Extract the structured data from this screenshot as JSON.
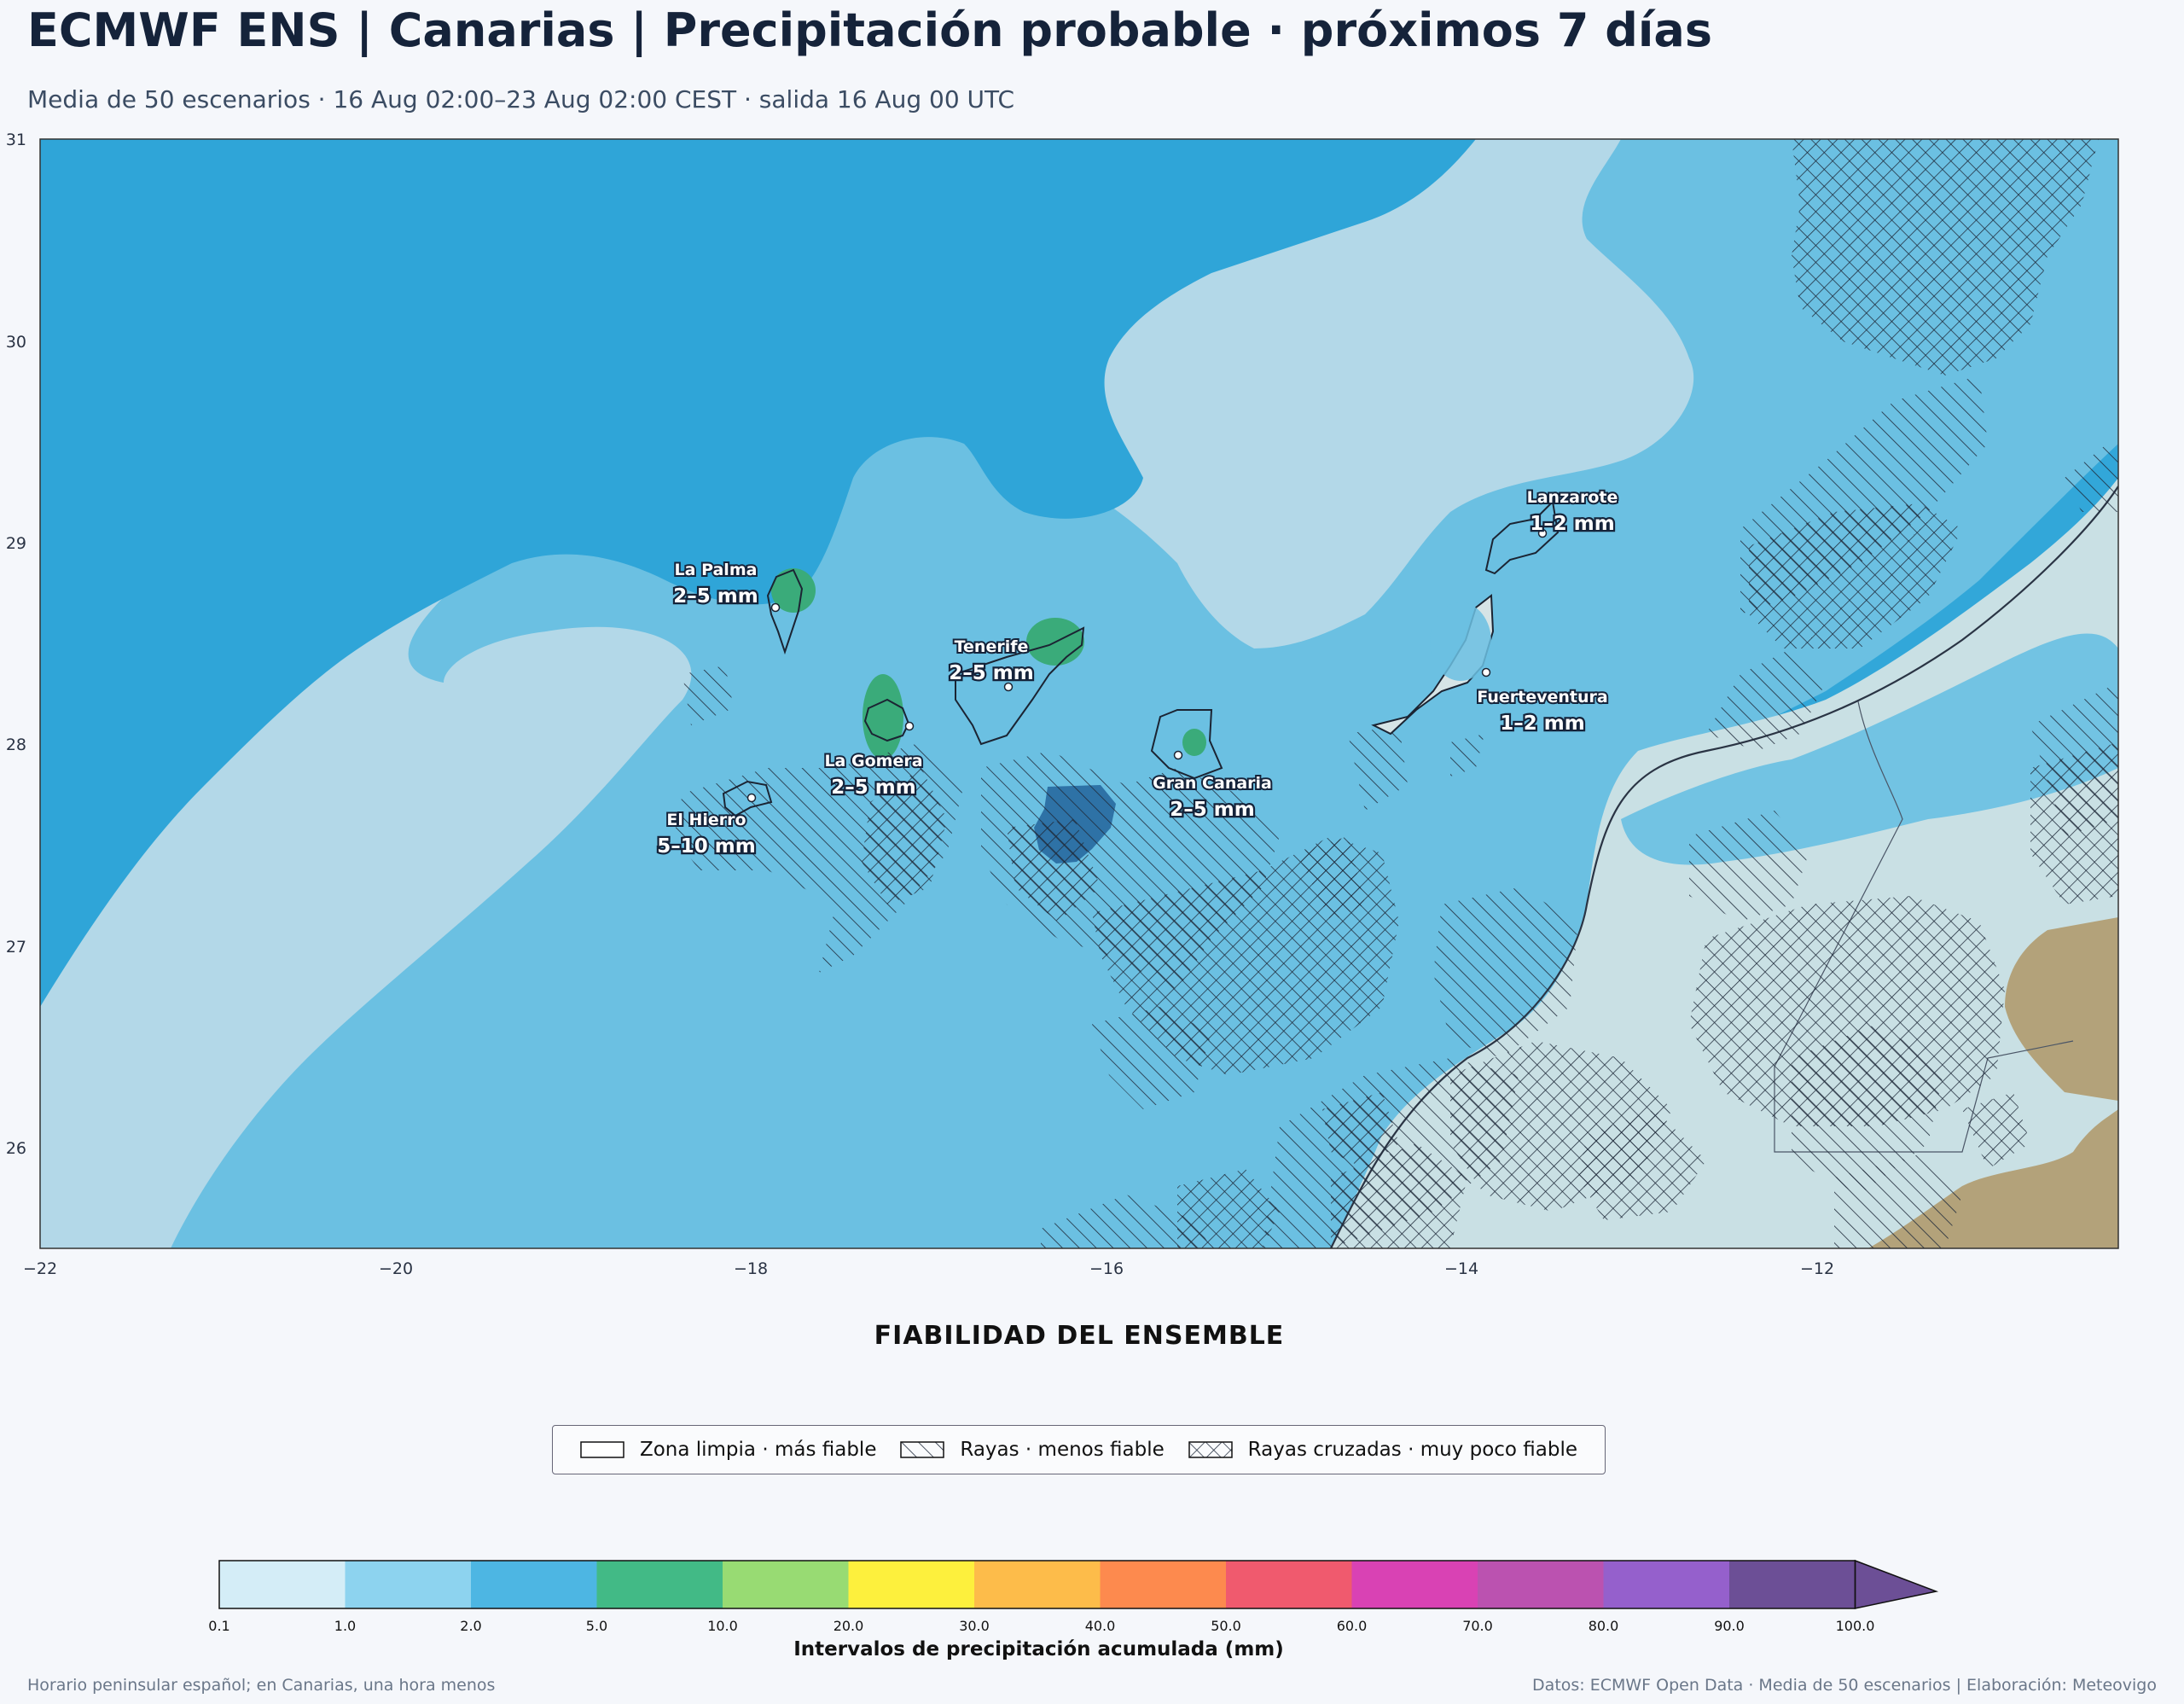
{
  "header": {
    "title": "ECMWF ENS | Canarias | Precipitación probable · próximos 7 días",
    "subtitle": "Media de 50 escenarios · 16 Aug 02:00–23 Aug 02:00 CEST · salida 16 Aug 00 UTC"
  },
  "map": {
    "lon_range": [
      -22,
      -10.3
    ],
    "lat_range": [
      25.5,
      31
    ],
    "x_ticks": [
      "−22",
      "−20",
      "−18",
      "−16",
      "−14",
      "−12"
    ],
    "y_ticks": [
      "26",
      "27",
      "28",
      "29",
      "30",
      "31"
    ],
    "colors": {
      "ocean_deep": "#2fa5d8",
      "ocean_mid": "#6bc0e2",
      "ocean_light": "#b3d8e8",
      "rain_green": "#3aab7a",
      "rain_dark": "#2e72a6",
      "land": "#c9e0e4",
      "desert": "#b3a27a"
    },
    "islands": [
      {
        "name": "La Palma",
        "value": "2–5 mm"
      },
      {
        "name": "Tenerife",
        "value": "2–5 mm"
      },
      {
        "name": "La Gomera",
        "value": "2–5 mm"
      },
      {
        "name": "El Hierro",
        "value": "5–10 mm"
      },
      {
        "name": "Gran Canaria",
        "value": "2–5 mm"
      },
      {
        "name": "Lanzarote",
        "value": "1–2 mm"
      },
      {
        "name": "Fuerteventura",
        "value": "1–2 mm"
      }
    ]
  },
  "reliability": {
    "title": "FIABILIDAD DEL ENSEMBLE",
    "items": [
      {
        "label": "Zona limpia · más fiable",
        "pattern": "none"
      },
      {
        "label": "Rayas · menos fiable",
        "pattern": "hatch"
      },
      {
        "label": "Rayas cruzadas · muy poco fiable",
        "pattern": "crosshatch"
      }
    ]
  },
  "colorbar": {
    "label": "Intervalos de precipitación acumulada (mm)",
    "ticks": [
      "0.1",
      "1.0",
      "2.0",
      "5.0",
      "10.0",
      "20.0",
      "30.0",
      "40.0",
      "50.0",
      "60.0",
      "70.0",
      "80.0",
      "90.0",
      "100.0"
    ],
    "colors": [
      "#d4edf7",
      "#8dd3ef",
      "#4db6e3",
      "#42ba86",
      "#98db73",
      "#fdf03d",
      "#fdbc4a",
      "#fd8a4e",
      "#f05a6e",
      "#d942b4",
      "#bb52b0",
      "#9560cc",
      "#6c4f96"
    ],
    "extend_color": "#6c4f96"
  },
  "footer": {
    "left": "Horario peninsular español; en Canarias, una hora menos",
    "right": "Datos: ECMWF Open Data · Media de 50 escenarios | Elaboración: Meteovigo"
  }
}
